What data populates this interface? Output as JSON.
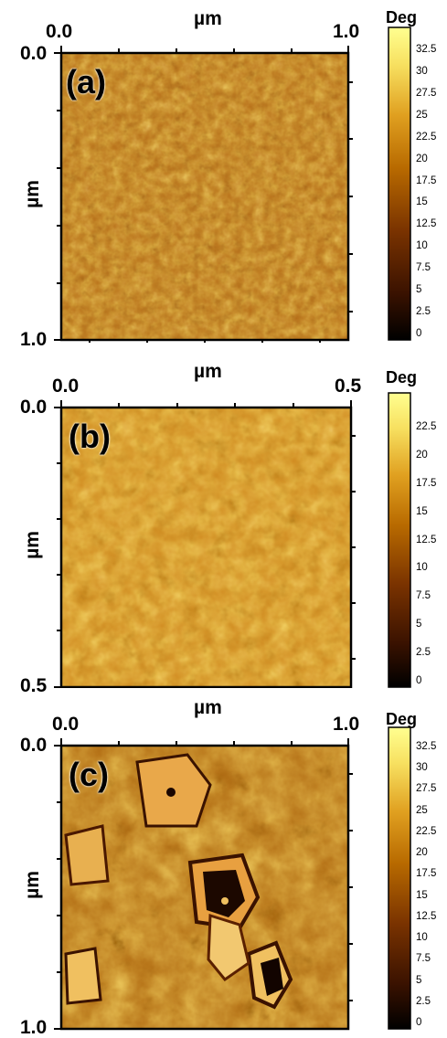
{
  "panels": [
    {
      "id": "a",
      "label": "(a)",
      "x_unit": "µm",
      "y_unit": "µm",
      "x_min_label": "0.0",
      "x_max_label": "1.0",
      "y_min_label": "0.0",
      "y_max_label": "1.0",
      "colorbar_title": "Deg",
      "colorbar_ticks": [
        "32.5",
        "30",
        "27.5",
        "25",
        "22.5",
        "20",
        "17.5",
        "15",
        "12.5",
        "10",
        "7.5",
        "5",
        "2.5",
        "0"
      ]
    },
    {
      "id": "b",
      "label": "(b)",
      "x_unit": "µm",
      "y_unit": "µm",
      "x_min_label": "0.0",
      "x_max_label": "0.5",
      "y_min_label": "0.0",
      "y_max_label": "0.5",
      "colorbar_title": "Deg",
      "colorbar_ticks": [
        "22.5",
        "20",
        "17.5",
        "15",
        "12.5",
        "10",
        "7.5",
        "5",
        "2.5",
        "0"
      ]
    },
    {
      "id": "c",
      "label": "(c)",
      "x_unit": "µm",
      "y_unit": "µm",
      "x_min_label": "0.0",
      "x_max_label": "1.0",
      "y_min_label": "0.0",
      "y_max_label": "1.0",
      "colorbar_title": "Deg",
      "colorbar_ticks": [
        "32.5",
        "30",
        "27.5",
        "25",
        "22.5",
        "20",
        "17.5",
        "15",
        "12.5",
        "10",
        "7.5",
        "5",
        "2.5",
        "0"
      ]
    }
  ],
  "colors": {
    "colormap": [
      "#000000",
      "#3a1200",
      "#7a3300",
      "#b86a00",
      "#e0a020",
      "#f7e060",
      "#ffff90"
    ]
  }
}
